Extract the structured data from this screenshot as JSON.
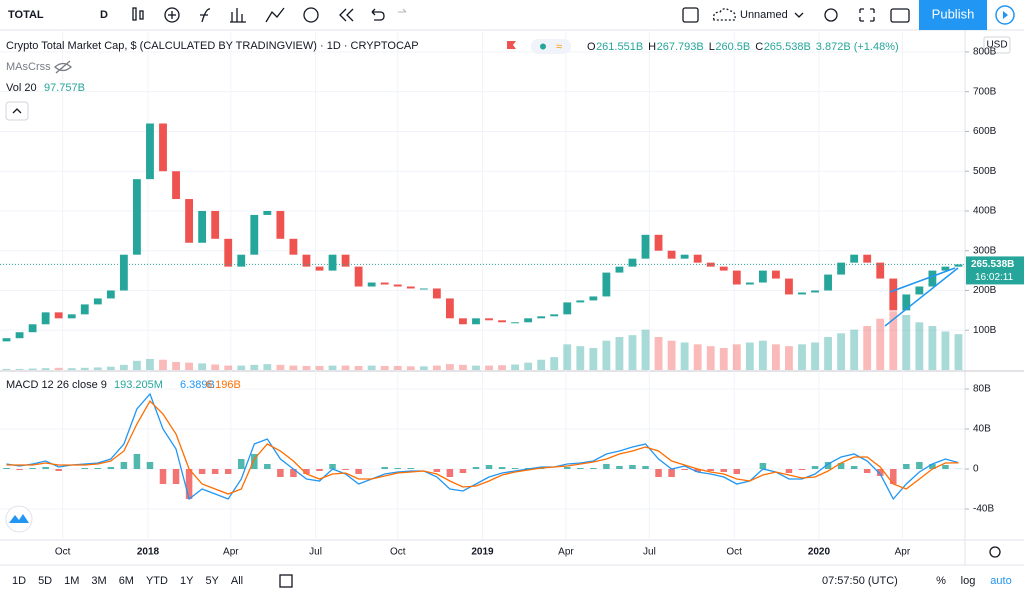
{
  "toolbar": {
    "symbol": "TOTAL",
    "interval": "D",
    "layout_name": "Unnamed",
    "publish": "Publish"
  },
  "legend": {
    "ohlc": [
      {
        "label": "O",
        "value": "261.551B"
      },
      {
        "label": "H",
        "value": "267.793B"
      },
      {
        "label": "L",
        "value": "260.5B"
      },
      {
        "label": "C",
        "value": "265.538B"
      }
    ],
    "change": "3.872B (+1.48%)",
    "indicator": "MAsCrss",
    "volume_label": "Vol 20",
    "volume_value": "97.757B"
  },
  "price_axis_currency": "USD",
  "chart_data": [
    {
      "type": "candlestick",
      "title": "Crypto Total Market Cap, $ (CALCULATED BY TRADINGVIEW) · 1D · CRYPTOCAP",
      "open": [
        72,
        80,
        95,
        115,
        145,
        130,
        140,
        165,
        180,
        200,
        290,
        480,
        620,
        500,
        430,
        320,
        400,
        330,
        260,
        290,
        390,
        400,
        330,
        290,
        260,
        250,
        290,
        260,
        210,
        220,
        215,
        210,
        205,
        205,
        180,
        130,
        115,
        130,
        125,
        120,
        120,
        130,
        135,
        140,
        170,
        175,
        185,
        245,
        260,
        280,
        340,
        300,
        280,
        290,
        270,
        260,
        250,
        215,
        220,
        250,
        230,
        190,
        195,
        200,
        240,
        270,
        290,
        270,
        230,
        150,
        190,
        210,
        250,
        260
      ],
      "close": [
        80,
        95,
        115,
        145,
        130,
        140,
        165,
        180,
        200,
        290,
        480,
        620,
        500,
        430,
        320,
        400,
        330,
        260,
        290,
        390,
        400,
        330,
        290,
        260,
        250,
        290,
        260,
        210,
        220,
        215,
        210,
        205,
        205,
        180,
        130,
        115,
        130,
        125,
        120,
        120,
        130,
        135,
        140,
        170,
        175,
        185,
        245,
        260,
        280,
        340,
        300,
        280,
        290,
        270,
        260,
        250,
        215,
        220,
        250,
        230,
        190,
        195,
        200,
        240,
        270,
        290,
        270,
        230,
        150,
        190,
        210,
        250,
        260,
        265.538
      ],
      "volume": [
        3,
        3,
        4,
        5,
        6,
        5,
        6,
        7,
        9,
        14,
        25,
        30,
        28,
        22,
        20,
        18,
        15,
        12,
        12,
        14,
        16,
        14,
        12,
        11,
        11,
        12,
        12,
        11,
        12,
        11,
        11,
        10,
        10,
        12,
        16,
        14,
        12,
        12,
        13,
        15,
        20,
        28,
        35,
        70,
        65,
        60,
        80,
        90,
        95,
        110,
        90,
        80,
        75,
        70,
        65,
        60,
        70,
        75,
        80,
        70,
        65,
        70,
        75,
        90,
        100,
        110,
        120,
        140,
        160,
        150,
        130,
        120,
        105,
        97.757
      ],
      "up_color": "#26a69a",
      "down_color": "#ef5350",
      "ylim": [
        0,
        830
      ],
      "volume_ylim": [
        0,
        900
      ],
      "xlim": [
        0,
        74
      ],
      "yticks": [
        {
          "value": 100,
          "label": "100B"
        },
        {
          "value": 200,
          "label": "200B"
        },
        {
          "value": 300,
          "label": "300B"
        },
        {
          "value": 400,
          "label": "400B"
        },
        {
          "value": 500,
          "label": "500B"
        },
        {
          "value": 600,
          "label": "600B"
        },
        {
          "value": 700,
          "label": "700B"
        },
        {
          "value": 800,
          "label": "800B"
        }
      ],
      "xticks": [
        {
          "value": 4.8,
          "label": "Oct"
        },
        {
          "value": 11.35,
          "label": "2018"
        },
        {
          "value": 17.7,
          "label": "Apr"
        },
        {
          "value": 24.2,
          "label": "Jul"
        },
        {
          "value": 30.5,
          "label": "Oct"
        },
        {
          "value": 37.0,
          "label": "2019"
        },
        {
          "value": 43.4,
          "label": "Apr"
        },
        {
          "value": 49.8,
          "label": "Jul"
        },
        {
          "value": 56.3,
          "label": "Oct"
        },
        {
          "value": 62.8,
          "label": "2020"
        },
        {
          "value": 69.2,
          "label": "Apr"
        }
      ],
      "last_price_label": "265.538B",
      "countdown": "16:02:11",
      "grid": true
    },
    {
      "type": "macd",
      "title": "MACD 12 26 close 9",
      "legend_values": [
        "193.205M",
        "6.389B",
        "6.196B"
      ],
      "macd": [
        5,
        3,
        5,
        8,
        2,
        4,
        5,
        6,
        10,
        25,
        60,
        75,
        40,
        20,
        -30,
        -20,
        -25,
        -30,
        -10,
        25,
        30,
        10,
        0,
        -10,
        -12,
        0,
        -5,
        -15,
        -10,
        -5,
        -3,
        -2,
        -2,
        -8,
        -20,
        -22,
        -15,
        -8,
        -4,
        -2,
        0,
        2,
        2,
        5,
        6,
        8,
        15,
        18,
        22,
        25,
        10,
        0,
        3,
        -3,
        -5,
        -8,
        -15,
        -12,
        0,
        -3,
        -10,
        -10,
        -5,
        5,
        12,
        15,
        8,
        -5,
        -30,
        -15,
        -3,
        5,
        10,
        6.389
      ],
      "signal": [
        4,
        4,
        4,
        6,
        4,
        4,
        4,
        5,
        8,
        18,
        45,
        68,
        55,
        35,
        0,
        -15,
        -20,
        -25,
        -20,
        10,
        25,
        18,
        8,
        -5,
        -10,
        -5,
        -4,
        -10,
        -10,
        -7,
        -4,
        -3,
        -2,
        -5,
        -12,
        -18,
        -17,
        -12,
        -6,
        -3,
        -1,
        1,
        2,
        3,
        5,
        7,
        10,
        15,
        18,
        22,
        18,
        8,
        4,
        0,
        -3,
        -5,
        -10,
        -12,
        -6,
        -3,
        -6,
        -9,
        -8,
        -2,
        6,
        12,
        12,
        2,
        -15,
        -20,
        -10,
        0,
        6,
        6.196
      ],
      "histogram": [
        1,
        -1,
        1,
        2,
        -2,
        0,
        1,
        1,
        2,
        7,
        15,
        7,
        -15,
        -15,
        -30,
        -5,
        -5,
        -5,
        10,
        15,
        5,
        -8,
        -8,
        -5,
        -2,
        5,
        -1,
        -5,
        0,
        2,
        1,
        1,
        0,
        -3,
        -8,
        -4,
        2,
        4,
        2,
        1,
        1,
        1,
        0,
        2,
        1,
        1,
        5,
        3,
        4,
        3,
        -8,
        -8,
        -1,
        -3,
        -2,
        -3,
        -5,
        0,
        6,
        0,
        -4,
        -1,
        3,
        7,
        6,
        3,
        -4,
        -7,
        -15,
        5,
        7,
        5,
        4,
        0.193
      ],
      "macd_color": "#2196f3",
      "signal_color": "#ff6d00",
      "up_color": "#26a69a",
      "down_color": "#ef5350",
      "ylim": [
        -71,
        97
      ],
      "xlim": [
        0,
        74
      ],
      "yticks": [
        {
          "value": -40,
          "label": "-40B"
        },
        0,
        {
          "value": 40,
          "label": "40B"
        },
        {
          "value": 80,
          "label": "80B"
        }
      ]
    }
  ],
  "bottom_bar": {
    "ranges": [
      "1D",
      "5D",
      "1M",
      "3M",
      "6M",
      "YTD",
      "1Y",
      "5Y",
      "All"
    ],
    "clock": "07:57:50 (UTC)",
    "toggles": [
      "%",
      "log",
      "auto"
    ]
  }
}
